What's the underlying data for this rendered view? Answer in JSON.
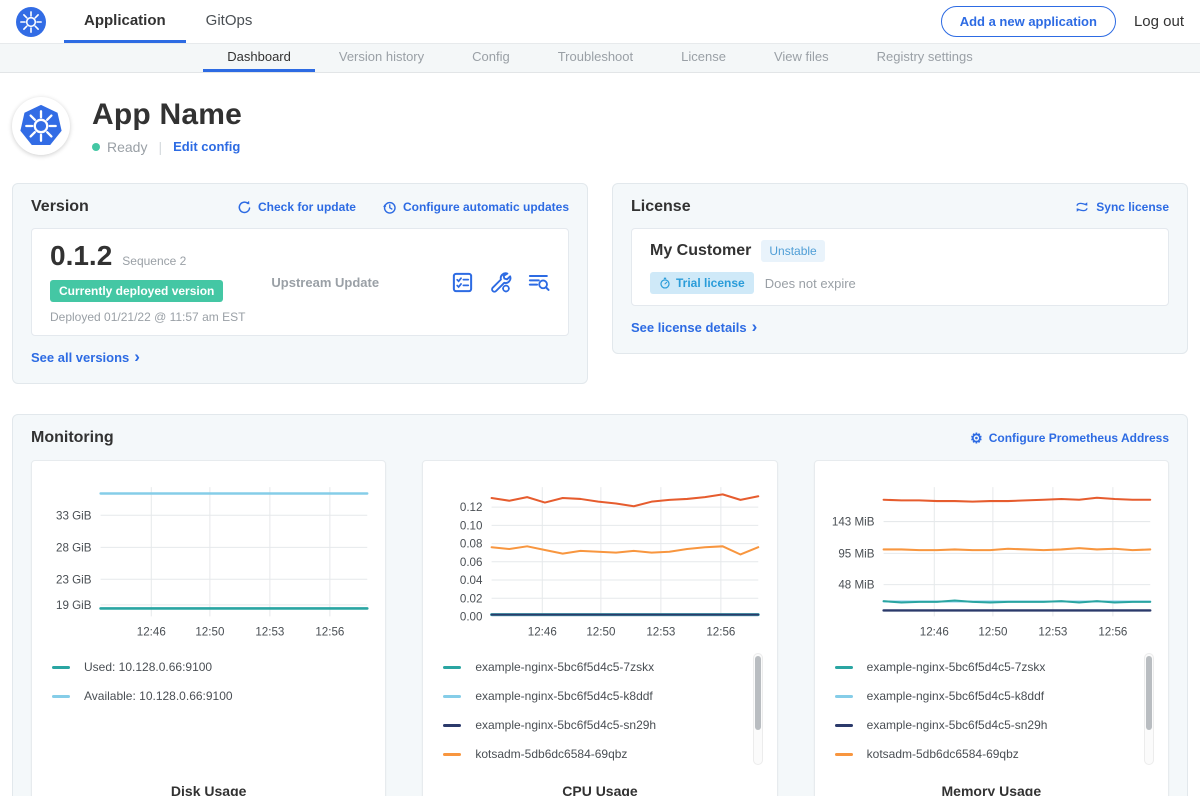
{
  "nav": {
    "application": "Application",
    "gitops": "GitOps",
    "add_app": "Add a new application",
    "logout": "Log out"
  },
  "subnav": {
    "tabs": [
      "Dashboard",
      "Version history",
      "Config",
      "Troubleshoot",
      "License",
      "View files",
      "Registry settings"
    ],
    "active": "Dashboard"
  },
  "app_header": {
    "title": "App Name",
    "status": "Ready",
    "edit_config": "Edit config"
  },
  "version_card": {
    "heading": "Version",
    "check_for_update": "Check for update",
    "configure_updates": "Configure automatic updates",
    "version": "0.1.2",
    "sequence": "Sequence 2",
    "deployed_badge": "Currently deployed version",
    "deployed_at": "Deployed 01/21/22 @ 11:57 am EST",
    "source": "Upstream Update",
    "see_all": "See all versions"
  },
  "license_card": {
    "heading": "License",
    "sync": "Sync license",
    "customer": "My Customer",
    "channel": "Unstable",
    "type_badge": "Trial license",
    "expiry": "Does not expire",
    "details": "See license details"
  },
  "monitoring": {
    "heading": "Monitoring",
    "configure_prometheus": "Configure Prometheus Address"
  },
  "icons": {
    "chevron_right": "›",
    "divider": "|",
    "gear": "⚙"
  },
  "colors": {
    "accent_blue": "#2d6be3",
    "brand_blue": "#326ce5",
    "success_green": "#44c7a4",
    "badge_blue_text": "#2a9cd9",
    "badge_blue_bg": "#cfe9f8",
    "series_teal": "#2aa5a2",
    "series_light_blue": "#85cde8",
    "series_navy": "#2b3a6b",
    "series_orange": "#f8963f",
    "series_red": "#e65c2e"
  },
  "chart_data": [
    {
      "type": "line",
      "title": "Disk Usage",
      "x_ticks": [
        "12:46",
        "12:50",
        "12:53",
        "12:56"
      ],
      "x_tick_pos": [
        0.19,
        0.41,
        0.635,
        0.86
      ],
      "y_ticks": [
        {
          "label": "19 GiB",
          "value": 19
        },
        {
          "label": "23 GiB",
          "value": 23
        },
        {
          "label": "28 GiB",
          "value": 28
        },
        {
          "label": "33 GiB",
          "value": 33
        }
      ],
      "ylim": [
        17.2,
        37.4
      ],
      "grid": true,
      "legend_position": "below",
      "series": [
        {
          "name": "Available: 10.128.0.66:9100",
          "color": "#85cde8",
          "width": 2.4,
          "values": [
            36.4,
            36.4
          ]
        },
        {
          "name": "Used: 10.128.0.66:9100",
          "color": "#2aa5a2",
          "width": 2.6,
          "values": [
            18.45,
            18.45
          ]
        }
      ],
      "legend": [
        {
          "label": "Used: 10.128.0.66:9100",
          "color": "#2aa5a2"
        },
        {
          "label": "Available: 10.128.0.66:9100",
          "color": "#85cde8"
        }
      ],
      "scrollbar": false
    },
    {
      "type": "line",
      "title": "CPU Usage",
      "x_ticks": [
        "12:46",
        "12:50",
        "12:53",
        "12:56"
      ],
      "x_tick_pos": [
        0.19,
        0.41,
        0.635,
        0.86
      ],
      "y_ticks": [
        {
          "label": "0.00",
          "value": 0
        },
        {
          "label": "0.02",
          "value": 0.02
        },
        {
          "label": "0.04",
          "value": 0.04
        },
        {
          "label": "0.06",
          "value": 0.06
        },
        {
          "label": "0.08",
          "value": 0.08
        },
        {
          "label": "0.10",
          "value": 0.1
        },
        {
          "label": "0.12",
          "value": 0.12
        }
      ],
      "ylim": [
        0,
        0.142
      ],
      "grid": true,
      "legend_position": "below",
      "series": [
        {
          "name": "example-nginx-5bc6f5d4c5-k8ddf",
          "color": "#85cde8",
          "width": 3,
          "values": [
            0.002,
            0.002
          ]
        },
        {
          "name": "example-nginx-5bc6f5d4c5-7zskx",
          "color": "#2aa5a2",
          "width": 2.6,
          "values": [
            0.002,
            0.002
          ]
        },
        {
          "name": "example-nginx-5bc6f5d4c5-sn29h",
          "color": "#2b3a6b",
          "width": 2,
          "values": [
            0.002,
            0.002
          ]
        },
        {
          "name": "kotsadm-5db6dc6584-69qbz",
          "color": "#f8963f",
          "width": 2,
          "values": [
            0.076,
            0.074,
            0.077,
            0.073,
            0.069,
            0.072,
            0.071,
            0.07,
            0.072,
            0.07,
            0.071,
            0.074,
            0.076,
            0.077,
            0.068,
            0.076
          ]
        },
        {
          "name": "",
          "color": "#e65c2e",
          "width": 2,
          "values": [
            0.13,
            0.127,
            0.131,
            0.125,
            0.13,
            0.129,
            0.126,
            0.124,
            0.121,
            0.126,
            0.128,
            0.129,
            0.131,
            0.134,
            0.128,
            0.132
          ]
        }
      ],
      "legend": [
        {
          "label": "example-nginx-5bc6f5d4c5-7zskx",
          "color": "#2aa5a2"
        },
        {
          "label": "example-nginx-5bc6f5d4c5-k8ddf",
          "color": "#85cde8"
        },
        {
          "label": "example-nginx-5bc6f5d4c5-sn29h",
          "color": "#2b3a6b"
        },
        {
          "label": "kotsadm-5db6dc6584-69qbz",
          "color": "#f8963f"
        }
      ],
      "scrollbar": true
    },
    {
      "type": "line",
      "title": "Memory Usage",
      "x_ticks": [
        "12:46",
        "12:50",
        "12:53",
        "12:56"
      ],
      "x_tick_pos": [
        0.19,
        0.41,
        0.635,
        0.86
      ],
      "y_ticks": [
        {
          "label": "48 MiB",
          "value": 48
        },
        {
          "label": "95 MiB",
          "value": 95
        },
        {
          "label": "143 MiB",
          "value": 143
        }
      ],
      "ylim": [
        0,
        195
      ],
      "grid": true,
      "legend_position": "below",
      "series": [
        {
          "name": "example-nginx-5bc6f5d4c5-k8ddf",
          "color": "#85cde8",
          "width": 2,
          "values": [
            22.5,
            22.5
          ]
        },
        {
          "name": "example-nginx-5bc6f5d4c5-sn29h",
          "color": "#2b3a6b",
          "width": 2.4,
          "values": [
            9,
            9
          ]
        },
        {
          "name": "example-nginx-5bc6f5d4c5-7zskx",
          "color": "#2aa5a2",
          "width": 2,
          "values": [
            23,
            21,
            22,
            22,
            24,
            22,
            21,
            22,
            22,
            22,
            23,
            21,
            23,
            21,
            22,
            22
          ]
        },
        {
          "name": "kotsadm-5db6dc6584-69qbz",
          "color": "#f8963f",
          "width": 2,
          "values": [
            101,
            101,
            100,
            100,
            101,
            100,
            100,
            102,
            101,
            100,
            101,
            103,
            101,
            102,
            100,
            101
          ]
        },
        {
          "name": "",
          "color": "#e65c2e",
          "width": 2,
          "values": [
            176,
            175,
            175,
            174,
            174,
            173,
            174,
            174,
            175,
            176,
            177,
            176,
            179,
            177,
            176,
            176
          ]
        }
      ],
      "legend": [
        {
          "label": "example-nginx-5bc6f5d4c5-7zskx",
          "color": "#2aa5a2"
        },
        {
          "label": "example-nginx-5bc6f5d4c5-k8ddf",
          "color": "#85cde8"
        },
        {
          "label": "example-nginx-5bc6f5d4c5-sn29h",
          "color": "#2b3a6b"
        },
        {
          "label": "kotsadm-5db6dc6584-69qbz",
          "color": "#f8963f"
        }
      ],
      "scrollbar": true
    }
  ]
}
